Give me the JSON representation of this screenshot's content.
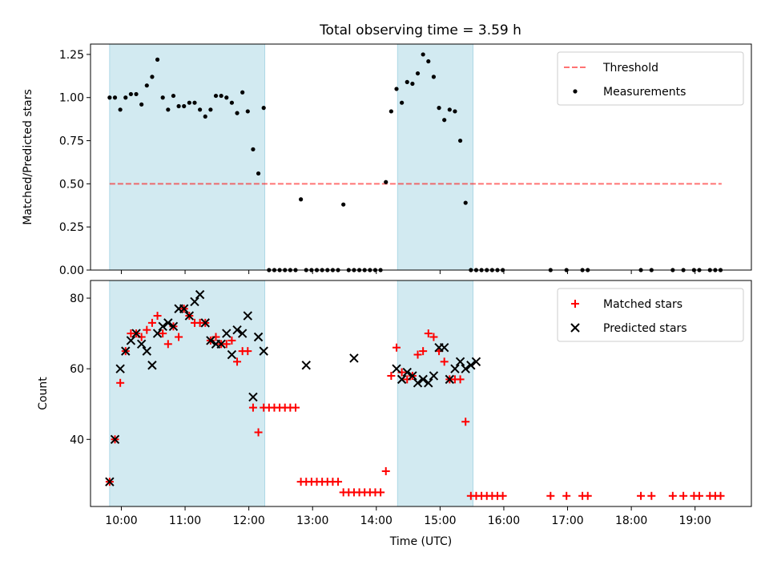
{
  "title": "Total observing time = 3.59 h",
  "colors": {
    "shade": "#add8e6",
    "threshold": "#ff0000",
    "measurements": "#000000",
    "matched": "#ff0000",
    "predicted": "#000000"
  },
  "chart_data": [
    {
      "type": "scatter",
      "ylabel": "Matched/Predicted stars",
      "xlabel": "",
      "xlim": [
        "09:31",
        "19:53"
      ],
      "ylim": [
        0,
        1.31
      ],
      "yticks": [
        "0.00",
        "0.25",
        "0.50",
        "0.75",
        "1.00",
        "1.25"
      ],
      "shaded_intervals": [
        [
          "09:49",
          "12:15"
        ],
        [
          "14:20",
          "15:31"
        ]
      ],
      "legend": {
        "position": "top-right",
        "entries": [
          "Threshold",
          "Measurements"
        ]
      },
      "threshold": {
        "name": "Threshold",
        "y": 0.5,
        "x_range": [
          "09:49",
          "19:25"
        ],
        "style": "dashed"
      },
      "series": [
        {
          "name": "Measurements",
          "x": [
            "09:49",
            "09:54",
            "09:59",
            "10:04",
            "10:09",
            "10:14",
            "10:19",
            "10:24",
            "10:29",
            "10:34",
            "10:39",
            "10:44",
            "10:49",
            "10:54",
            "10:59",
            "11:04",
            "11:09",
            "11:14",
            "11:19",
            "11:24",
            "11:29",
            "11:34",
            "11:39",
            "11:44",
            "11:49",
            "11:54",
            "11:59",
            "12:04",
            "12:09",
            "12:14",
            "12:19",
            "12:24",
            "12:29",
            "12:34",
            "12:39",
            "12:44",
            "12:49",
            "12:54",
            "12:59",
            "13:04",
            "13:09",
            "13:14",
            "13:19",
            "13:24",
            "13:29",
            "13:34",
            "13:39",
            "13:44",
            "13:49",
            "13:54",
            "13:59",
            "14:04",
            "14:09",
            "14:14",
            "14:19",
            "14:24",
            "14:29",
            "14:34",
            "14:39",
            "14:44",
            "14:49",
            "14:54",
            "14:59",
            "15:04",
            "15:09",
            "15:14",
            "15:19",
            "15:24",
            "15:29",
            "15:34",
            "15:39",
            "15:44",
            "15:49",
            "15:54",
            "15:59",
            "16:44",
            "16:59",
            "17:14",
            "17:19",
            "18:09",
            "18:19",
            "18:39",
            "18:49",
            "18:59",
            "19:04",
            "19:14",
            "19:19",
            "19:24"
          ],
          "values": [
            1.0,
            1.0,
            0.93,
            1.0,
            1.02,
            1.02,
            0.96,
            1.07,
            1.12,
            1.22,
            1.0,
            0.93,
            1.01,
            0.95,
            0.95,
            0.97,
            0.97,
            0.93,
            0.89,
            0.93,
            1.01,
            1.01,
            1.0,
            0.97,
            0.91,
            1.03,
            0.92,
            0.7,
            0.56,
            0.94,
            0.0,
            0.0,
            0.0,
            0.0,
            0.0,
            0.0,
            0.41,
            0.0,
            0.0,
            0.0,
            0.0,
            0.0,
            0.0,
            0.0,
            0.38,
            0.0,
            0.0,
            0.0,
            0.0,
            0.0,
            0.0,
            0.0,
            0.51,
            0.92,
            1.05,
            0.97,
            1.09,
            1.08,
            1.14,
            1.25,
            1.21,
            1.12,
            0.94,
            0.87,
            0.93,
            0.92,
            0.75,
            0.39,
            0.0,
            0.0,
            0.0,
            0.0,
            0.0,
            0.0,
            0.0,
            0.0,
            0.0,
            0.0,
            0.0,
            0.0,
            0.0,
            0.0,
            0.0,
            0.0,
            0.0,
            0.0,
            0.0,
            0.0
          ]
        }
      ]
    },
    {
      "type": "scatter",
      "ylabel": "Count",
      "xlabel": "Time (UTC)",
      "xlim": [
        "09:31",
        "19:53"
      ],
      "ylim": [
        21,
        85
      ],
      "yticks": [
        "40",
        "60",
        "80"
      ],
      "xticks": [
        "10:00",
        "11:00",
        "12:00",
        "13:00",
        "14:00",
        "15:00",
        "16:00",
        "17:00",
        "18:00",
        "19:00"
      ],
      "shaded_intervals": [
        [
          "09:49",
          "12:15"
        ],
        [
          "14:20",
          "15:31"
        ]
      ],
      "legend": {
        "position": "top-right",
        "entries": [
          "Matched stars",
          "Predicted stars"
        ]
      },
      "series": [
        {
          "name": "Matched stars",
          "marker": "+",
          "x": [
            "09:49",
            "09:54",
            "09:59",
            "10:04",
            "10:09",
            "10:14",
            "10:19",
            "10:24",
            "10:29",
            "10:34",
            "10:39",
            "10:44",
            "10:49",
            "10:54",
            "10:59",
            "11:04",
            "11:09",
            "11:14",
            "11:19",
            "11:24",
            "11:29",
            "11:34",
            "11:39",
            "11:44",
            "11:49",
            "11:54",
            "11:59",
            "12:04",
            "12:09",
            "12:14",
            "12:19",
            "12:24",
            "12:29",
            "12:34",
            "12:39",
            "12:44",
            "12:49",
            "12:54",
            "12:59",
            "13:04",
            "13:09",
            "13:14",
            "13:19",
            "13:24",
            "13:29",
            "13:34",
            "13:39",
            "13:44",
            "13:49",
            "13:54",
            "13:59",
            "14:04",
            "14:09",
            "14:14",
            "14:19",
            "14:24",
            "14:29",
            "14:34",
            "14:39",
            "14:44",
            "14:49",
            "14:54",
            "14:59",
            "15:04",
            "15:09",
            "15:14",
            "15:19",
            "15:24",
            "15:29",
            "15:34",
            "15:39",
            "15:44",
            "15:49",
            "15:54",
            "15:59",
            "16:44",
            "16:59",
            "17:14",
            "17:19",
            "18:09",
            "18:19",
            "18:39",
            "18:49",
            "18:59",
            "19:04",
            "19:14",
            "19:19",
            "19:24"
          ],
          "values": [
            28,
            40,
            56,
            65,
            70,
            70,
            69,
            71,
            73,
            75,
            70,
            67,
            72,
            69,
            77,
            75,
            73,
            73,
            73,
            68,
            69,
            67,
            67,
            68,
            62,
            65,
            65,
            49,
            42,
            49,
            49,
            49,
            49,
            49,
            49,
            49,
            28,
            28,
            28,
            28,
            28,
            28,
            28,
            28,
            25,
            25,
            25,
            25,
            25,
            25,
            25,
            25,
            31,
            58,
            66,
            59,
            57,
            58,
            64,
            65,
            70,
            69,
            65,
            62,
            57,
            57,
            57,
            45,
            24,
            24,
            24,
            24,
            24,
            24,
            24,
            24,
            24,
            24,
            24,
            24,
            24,
            24,
            24,
            24,
            24,
            24,
            24,
            24
          ]
        },
        {
          "name": "Predicted stars",
          "marker": "x",
          "x": [
            "09:49",
            "09:54",
            "09:59",
            "10:04",
            "10:09",
            "10:14",
            "10:19",
            "10:24",
            "10:29",
            "10:34",
            "10:39",
            "10:44",
            "10:49",
            "10:54",
            "10:59",
            "11:04",
            "11:09",
            "11:14",
            "11:19",
            "11:24",
            "11:29",
            "11:34",
            "11:39",
            "11:44",
            "11:49",
            "11:54",
            "11:59",
            "12:04",
            "12:09",
            "12:14",
            "12:54",
            "13:39",
            "14:19",
            "14:24",
            "14:29",
            "14:34",
            "14:39",
            "14:44",
            "14:49",
            "14:54",
            "14:59",
            "15:04",
            "15:09",
            "15:14",
            "15:19",
            "15:24",
            "15:29",
            "15:34"
          ],
          "values": [
            28,
            40,
            60,
            65,
            68,
            70,
            67,
            65,
            61,
            70,
            72,
            73,
            72,
            77,
            77,
            75,
            79,
            81,
            73,
            68,
            67,
            67,
            70,
            64,
            71,
            70,
            75,
            52,
            69,
            65,
            61,
            63,
            60,
            57,
            59,
            58,
            56,
            57,
            56,
            58,
            66,
            66,
            57,
            60,
            62,
            60,
            61,
            62
          ]
        }
      ]
    }
  ]
}
